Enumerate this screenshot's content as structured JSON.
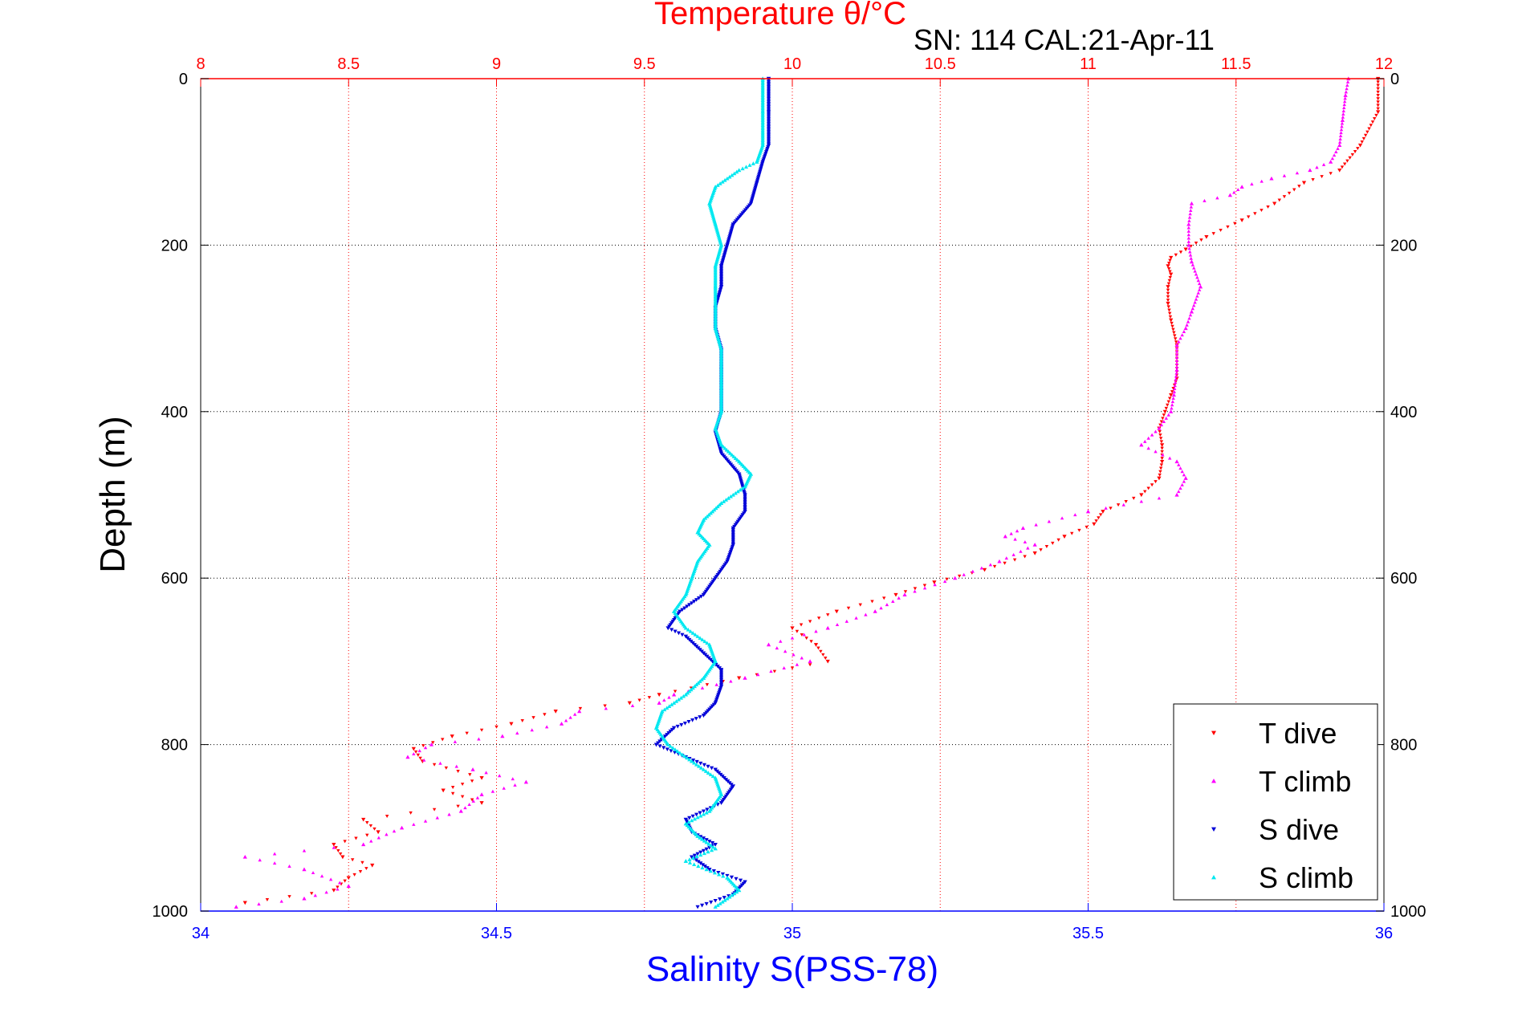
{
  "chart_data": {
    "type": "scatter",
    "title": "Temperature θ/°C",
    "subtitle": "SN: 114  CAL:21-Apr-11",
    "xlabel": "Salinity S(PSS-78)",
    "ylabel": "Depth (m)",
    "x_top": {
      "lim": [
        8,
        12
      ],
      "ticks": [
        "8",
        "8.5",
        "9",
        "9.5",
        "10",
        "10.5",
        "11",
        "11.5",
        "12"
      ],
      "color": "#ff0000"
    },
    "x_bottom": {
      "lim": [
        34,
        36
      ],
      "ticks": [
        "34",
        "34.5",
        "35",
        "35.5",
        "36"
      ],
      "color": "#0000ff"
    },
    "y": {
      "lim": [
        0,
        1000
      ],
      "reversed": true,
      "ticks": [
        "0",
        "200",
        "400",
        "600",
        "800",
        "1000"
      ]
    },
    "grid": true,
    "legend_position": "bottom-right",
    "series": [
      {
        "name": "T dive",
        "axis": "top",
        "color": "#ff0000",
        "marker": "triangle-down",
        "depth": [
          0,
          40,
          80,
          110,
          125,
          150,
          170,
          190,
          205,
          215,
          225,
          235,
          250,
          270,
          290,
          320,
          360,
          380,
          400,
          420,
          440,
          460,
          480,
          500,
          520,
          535,
          550,
          570,
          590,
          605,
          620,
          640,
          660,
          680,
          700,
          720,
          740,
          750,
          760,
          775,
          790,
          805,
          820,
          840,
          855,
          870,
          890,
          905,
          920,
          935,
          945,
          960,
          975,
          990
        ],
        "values": [
          11.98,
          11.98,
          11.92,
          11.85,
          11.73,
          11.63,
          11.52,
          11.4,
          11.33,
          11.28,
          11.27,
          11.28,
          11.27,
          11.27,
          11.28,
          11.3,
          11.3,
          11.28,
          11.26,
          11.24,
          11.25,
          11.25,
          11.24,
          11.18,
          11.05,
          11.02,
          10.92,
          10.82,
          10.65,
          10.48,
          10.35,
          10.15,
          10.0,
          10.08,
          10.12,
          9.82,
          9.55,
          9.45,
          9.2,
          9.05,
          8.85,
          8.72,
          8.75,
          8.95,
          8.82,
          8.95,
          8.55,
          8.6,
          8.45,
          8.48,
          8.58,
          8.5,
          8.45,
          8.15
        ]
      },
      {
        "name": "T climb",
        "axis": "top",
        "color": "#ff00ff",
        "marker": "triangle-up",
        "depth": [
          0,
          20,
          50,
          80,
          100,
          110,
          120,
          130,
          140,
          150,
          175,
          200,
          220,
          250,
          280,
          300,
          320,
          350,
          380,
          400,
          420,
          440,
          460,
          480,
          500,
          520,
          540,
          550,
          560,
          580,
          600,
          620,
          640,
          660,
          680,
          700,
          720,
          740,
          750,
          760,
          775,
          790,
          800,
          815,
          830,
          845,
          860,
          880,
          900,
          920,
          935,
          950,
          970,
          985,
          995
        ],
        "values": [
          11.88,
          11.87,
          11.86,
          11.85,
          11.82,
          11.75,
          11.62,
          11.52,
          11.48,
          11.35,
          11.34,
          11.34,
          11.35,
          11.38,
          11.35,
          11.33,
          11.3,
          11.3,
          11.29,
          11.28,
          11.24,
          11.18,
          11.3,
          11.33,
          11.3,
          11.0,
          10.78,
          10.72,
          10.82,
          10.7,
          10.55,
          10.38,
          10.28,
          10.12,
          9.92,
          10.06,
          9.84,
          9.6,
          9.55,
          9.28,
          9.22,
          9.02,
          8.78,
          8.7,
          8.92,
          9.1,
          8.95,
          8.88,
          8.68,
          8.55,
          8.15,
          8.35,
          8.5,
          8.35,
          8.12
        ]
      },
      {
        "name": "S dive",
        "axis": "bottom",
        "color": "#0000d8",
        "marker": "triangle-down",
        "depth": [
          0,
          40,
          80,
          100,
          125,
          150,
          175,
          200,
          225,
          250,
          275,
          300,
          325,
          350,
          375,
          400,
          425,
          450,
          475,
          500,
          520,
          540,
          560,
          580,
          600,
          620,
          640,
          660,
          670,
          690,
          710,
          730,
          750,
          765,
          780,
          800,
          815,
          830,
          850,
          870,
          890,
          905,
          920,
          935,
          950,
          965,
          980,
          995
        ],
        "values": [
          34.96,
          34.96,
          34.96,
          34.95,
          34.94,
          34.93,
          34.9,
          34.89,
          34.88,
          34.88,
          34.87,
          34.87,
          34.88,
          34.88,
          34.88,
          34.88,
          34.87,
          34.88,
          34.91,
          34.92,
          34.92,
          34.9,
          34.9,
          34.89,
          34.87,
          34.85,
          34.81,
          34.79,
          34.82,
          34.85,
          34.88,
          34.88,
          34.87,
          34.85,
          34.8,
          34.77,
          34.82,
          34.87,
          34.9,
          34.88,
          34.82,
          34.83,
          34.87,
          34.83,
          34.86,
          34.92,
          34.9,
          34.84
        ]
      },
      {
        "name": "S climb",
        "axis": "bottom",
        "color": "#00e8f0",
        "marker": "triangle-up",
        "depth": [
          0,
          40,
          80,
          100,
          110,
          130,
          150,
          175,
          200,
          225,
          250,
          275,
          300,
          325,
          350,
          375,
          400,
          420,
          440,
          460,
          475,
          490,
          510,
          530,
          545,
          560,
          580,
          600,
          620,
          640,
          660,
          680,
          700,
          720,
          740,
          760,
          780,
          800,
          820,
          840,
          860,
          880,
          895,
          910,
          925,
          940,
          960,
          975,
          995
        ],
        "values": [
          34.95,
          34.95,
          34.95,
          34.94,
          34.91,
          34.87,
          34.86,
          34.87,
          34.88,
          34.87,
          34.87,
          34.87,
          34.87,
          34.88,
          34.88,
          34.88,
          34.88,
          34.87,
          34.88,
          34.91,
          34.93,
          34.92,
          34.88,
          34.85,
          34.84,
          34.86,
          34.84,
          34.83,
          34.82,
          34.8,
          34.82,
          34.86,
          34.87,
          34.85,
          34.82,
          34.78,
          34.77,
          34.79,
          34.83,
          34.87,
          34.88,
          34.86,
          34.82,
          34.84,
          34.87,
          34.82,
          34.89,
          34.91,
          34.87
        ]
      }
    ]
  }
}
